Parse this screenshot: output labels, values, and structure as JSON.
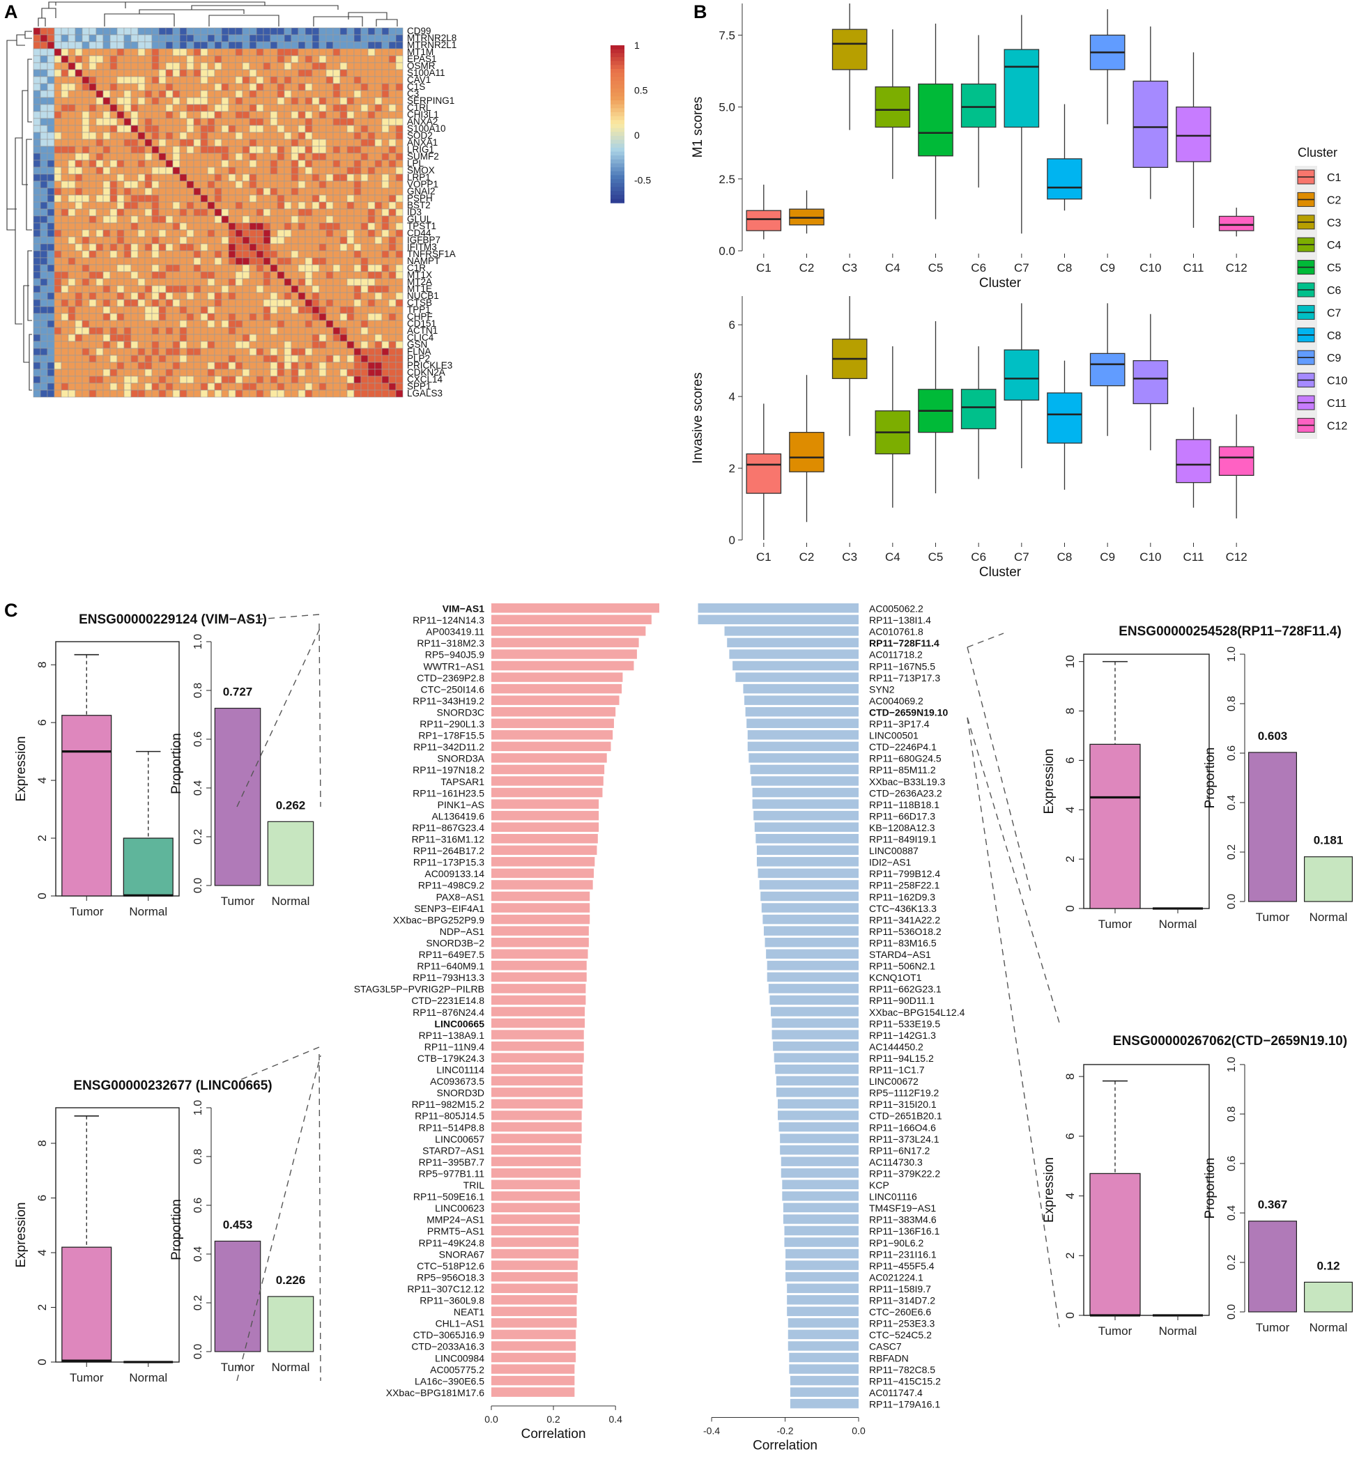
{
  "panel_labels": [
    "A",
    "B",
    "C"
  ],
  "chart_data": [
    {
      "id": "A",
      "type": "heatmap",
      "title": "",
      "genes": [
        "CD99",
        "MTRNR2L8",
        "MTRNR2L1",
        "MT1M",
        "EPAS1",
        "OSMR",
        "S100A11",
        "CAV1",
        "C1S",
        "C3",
        "SERPING1",
        "C1RL",
        "CHI3L1",
        "ANXA2",
        "S100A10",
        "SOD2",
        "ANXA1",
        "LRIG1",
        "SUMF2",
        "LPL",
        "SMOX",
        "LRP1",
        "VOPP1",
        "GNAI2",
        "PSPH",
        "BST2",
        "ID3",
        "GLUL",
        "TPST1",
        "CD44",
        "IGFBP7",
        "IFITM3",
        "TNFRSF1A",
        "NAMPT",
        "C1R",
        "MT1X",
        "MT2A",
        "MT1E",
        "NUCB1",
        "CTSB",
        "TPP1",
        "CHPF",
        "CD151",
        "ACTN1",
        "CLIC4",
        "GSN",
        "FLNA",
        "PLP2",
        "PRICKLE3",
        "CDKN2A",
        "CXCL14",
        "SPP1",
        "LGALS3"
      ],
      "colorbar": {
        "ticks": [
          "1",
          "0.5",
          "0",
          "-0.5"
        ],
        "tick_values": [
          1,
          0.5,
          0,
          -0.5
        ],
        "range": [
          -0.75,
          1
        ],
        "colors": [
          "#2b3990",
          "#4d7ab8",
          "#a9d2e6",
          "#fbeaa3",
          "#ee9a55",
          "#e8734a",
          "#b2182b"
        ]
      }
    },
    {
      "id": "B-top",
      "type": "box",
      "xlabel": "Cluster",
      "ylabel": "M1 scores",
      "ylim": [
        0,
        8.6
      ],
      "yticks": [
        "0.0",
        "2.5",
        "5.0",
        "7.5"
      ],
      "ytick_values": [
        0,
        2.5,
        5,
        7.5
      ],
      "categories": [
        "C1",
        "C2",
        "C3",
        "C4",
        "C5",
        "C6",
        "C7",
        "C8",
        "C9",
        "C10",
        "C11",
        "C12"
      ],
      "boxes": [
        {
          "min": 0.4,
          "q1": 0.7,
          "median": 1.1,
          "q3": 1.4,
          "max": 2.3
        },
        {
          "min": 0.6,
          "q1": 0.9,
          "median": 1.15,
          "q3": 1.45,
          "max": 2.1
        },
        {
          "min": 4.2,
          "q1": 6.3,
          "median": 7.2,
          "q3": 7.7,
          "max": 8.6
        },
        {
          "min": 2.5,
          "q1": 4.3,
          "median": 4.9,
          "q3": 5.7,
          "max": 7.7
        },
        {
          "min": 1.1,
          "q1": 3.3,
          "median": 4.1,
          "q3": 5.8,
          "max": 7.9
        },
        {
          "min": 2.2,
          "q1": 4.3,
          "median": 5.0,
          "q3": 5.8,
          "max": 7.5
        },
        {
          "min": 0.6,
          "q1": 4.3,
          "median": 6.4,
          "q3": 7.0,
          "max": 8.2
        },
        {
          "min": 1.4,
          "q1": 1.8,
          "median": 2.2,
          "q3": 3.2,
          "max": 5.1
        },
        {
          "min": 4.4,
          "q1": 6.3,
          "median": 6.9,
          "q3": 7.5,
          "max": 8.4
        },
        {
          "min": 1.8,
          "q1": 2.9,
          "median": 4.3,
          "q3": 5.9,
          "max": 7.8
        },
        {
          "min": 0.8,
          "q1": 3.1,
          "median": 4.0,
          "q3": 5.0,
          "max": 6.9
        },
        {
          "min": 0.5,
          "q1": 0.7,
          "median": 0.9,
          "q3": 1.2,
          "max": 1.5
        }
      ],
      "colors": [
        "#f8766d",
        "#de8c00",
        "#b79f00",
        "#7cae00",
        "#00ba38",
        "#00c08b",
        "#00bfc4",
        "#00b4f0",
        "#619cff",
        "#a58aff",
        "#c77cff",
        "#ff61c3"
      ]
    },
    {
      "id": "B-bottom",
      "type": "box",
      "xlabel": "Cluster",
      "ylabel": "Invasive scores",
      "ylim": [
        0,
        6.8
      ],
      "yticks": [
        "0",
        "2",
        "4",
        "6"
      ],
      "ytick_values": [
        0,
        2,
        4,
        6
      ],
      "categories": [
        "C1",
        "C2",
        "C3",
        "C4",
        "C5",
        "C6",
        "C7",
        "C8",
        "C9",
        "C10",
        "C11",
        "C12"
      ],
      "boxes": [
        {
          "min": 0.0,
          "q1": 1.3,
          "median": 2.1,
          "q3": 2.4,
          "max": 3.8
        },
        {
          "min": 0.5,
          "q1": 1.9,
          "median": 2.3,
          "q3": 3.0,
          "max": 4.6
        },
        {
          "min": 2.9,
          "q1": 4.5,
          "median": 5.05,
          "q3": 5.6,
          "max": 6.8
        },
        {
          "min": 0.9,
          "q1": 2.4,
          "median": 3.0,
          "q3": 3.6,
          "max": 5.4
        },
        {
          "min": 1.3,
          "q1": 3.0,
          "median": 3.6,
          "q3": 4.2,
          "max": 6.1
        },
        {
          "min": 1.7,
          "q1": 3.1,
          "median": 3.7,
          "q3": 4.2,
          "max": 5.4
        },
        {
          "min": 2.0,
          "q1": 3.9,
          "median": 4.5,
          "q3": 5.3,
          "max": 6.6
        },
        {
          "min": 1.4,
          "q1": 2.7,
          "median": 3.5,
          "q3": 4.1,
          "max": 5.0
        },
        {
          "min": 2.9,
          "q1": 4.3,
          "median": 4.9,
          "q3": 5.2,
          "max": 6.6
        },
        {
          "min": 2.5,
          "q1": 3.8,
          "median": 4.5,
          "q3": 5.0,
          "max": 6.3
        },
        {
          "min": 0.9,
          "q1": 1.6,
          "median": 2.1,
          "q3": 2.8,
          "max": 3.7
        },
        {
          "min": 0.6,
          "q1": 1.8,
          "median": 2.3,
          "q3": 2.6,
          "max": 3.5
        }
      ],
      "colors": [
        "#f8766d",
        "#de8c00",
        "#b79f00",
        "#7cae00",
        "#00ba38",
        "#00c08b",
        "#00bfc4",
        "#00b4f0",
        "#619cff",
        "#a58aff",
        "#c77cff",
        "#ff61c3"
      ]
    },
    {
      "id": "B-legend",
      "type": "legend",
      "title": "Cluster",
      "entries": [
        "C1",
        "C2",
        "C3",
        "C4",
        "C5",
        "C6",
        "C7",
        "C8",
        "C9",
        "C10",
        "C11",
        "C12"
      ]
    },
    {
      "id": "C-positive",
      "type": "bar",
      "orientation": "horizontal",
      "color": "#f4a6a6",
      "xlabel": "Correlation",
      "xlim": [
        0,
        0.55
      ],
      "xticks": [
        "0.0",
        "0.2",
        "0.4"
      ],
      "xtick_values": [
        0,
        0.2,
        0.4
      ],
      "bold": [
        "VIM-AS1",
        "LINC00665"
      ],
      "categories": [
        "VIM−AS1",
        "RP11−124N14.3",
        "AP003419.11",
        "RP11−318M2.3",
        "RP5−940J5.9",
        "WWTR1−AS1",
        "CTD−2369P2.8",
        "CTC−250I14.6",
        "RP11−343H19.2",
        "SNORD3C",
        "RP11−290L1.3",
        "RP1−178F15.5",
        "RP11−342D11.2",
        "SNORD3A",
        "RP11−197N18.2",
        "TAPSAR1",
        "RP11−161H23.5",
        "PINK1−AS",
        "AL136419.6",
        "RP11−867G23.4",
        "RP11−316M1.12",
        "RP11−264B17.2",
        "RP11−173P15.3",
        "AC009133.14",
        "RP11−498C9.2",
        "PAX8−AS1",
        "SENP3−EIF4A1",
        "XXbac−BPG252P9.9",
        "NDP−AS1",
        "SNORD3B−2",
        "RP11−649E7.5",
        "RP11−640M9.1",
        "RP11−793H13.3",
        "STAG3L5P−PVRIG2P−PILRB",
        "CTD−2231E14.8",
        "RP11−876N24.4",
        "LINC00665",
        "RP11−138A9.1",
        "RP11−11N9.4",
        "CTB−179K24.3",
        "LINC01114",
        "AC093673.5",
        "SNORD3D",
        "RP11−982M15.2",
        "RP11−805J14.5",
        "RP11−514P8.8",
        "LINC00657",
        "STARD7−AS1",
        "RP11−395B7.7",
        "RP5−977B1.11",
        "TRIL",
        "RP11−509E16.1",
        "LINC00623",
        "MMP24−AS1",
        "PRMT5−AS1",
        "RP11−49K24.8",
        "SNORA67",
        "CTC−518P12.6",
        "RP5−956O18.3",
        "RP11−307C12.12",
        "RP11−360L9.8",
        "NEAT1",
        "CHL1−AS1",
        "CTD−3065J16.9",
        "CTD−2033A16.3",
        "LINC00984",
        "AC005775.2",
        "LA16c−390E6.5",
        "XXbac−BPG181M17.6"
      ],
      "values": [
        0.541,
        0.516,
        0.497,
        0.475,
        0.469,
        0.459,
        0.423,
        0.42,
        0.412,
        0.4,
        0.395,
        0.391,
        0.385,
        0.372,
        0.364,
        0.361,
        0.358,
        0.346,
        0.346,
        0.346,
        0.343,
        0.34,
        0.333,
        0.33,
        0.327,
        0.317,
        0.317,
        0.317,
        0.314,
        0.314,
        0.311,
        0.307,
        0.307,
        0.304,
        0.304,
        0.301,
        0.301,
        0.298,
        0.298,
        0.298,
        0.294,
        0.294,
        0.294,
        0.294,
        0.291,
        0.291,
        0.291,
        0.288,
        0.288,
        0.288,
        0.285,
        0.285,
        0.285,
        0.285,
        0.281,
        0.281,
        0.281,
        0.278,
        0.278,
        0.278,
        0.275,
        0.275,
        0.275,
        0.272,
        0.272,
        0.272,
        0.268,
        0.268,
        0.268
      ]
    },
    {
      "id": "C-negative",
      "type": "bar",
      "orientation": "horizontal",
      "color": "#a9c4e0",
      "xlabel": "Correlation",
      "xlim": [
        -0.44,
        0.0
      ],
      "xticks": [
        "-0.4",
        "-0.2",
        "0.0"
      ],
      "xtick_values": [
        -0.4,
        -0.2,
        0.0
      ],
      "bold": [
        "RP11-728F11.4",
        "CTD-2659N19.10"
      ],
      "categories": [
        "AC005062.2",
        "RP11−138I1.4",
        "AC010761.8",
        "RP11−728F11.4",
        "AC011718.2",
        "RP11−167N5.5",
        "RP11−713P17.3",
        "SYN2",
        "AC004069.2",
        "CTD−2659N19.10",
        "RP11−3P17.4",
        "LINC00501",
        "CTD−2246P4.1",
        "RP11−680G24.5",
        "RP11−85M11.2",
        "XXbac−B33L19.3",
        "CTD−2636A23.2",
        "RP11−118B18.1",
        "RP11−66D17.3",
        "KB−1208A12.3",
        "RP11−849I19.1",
        "LINC00887",
        "IDI2−AS1",
        "RP11−799B12.4",
        "RP11−258F22.1",
        "RP11−162D9.3",
        "CTC−436K13.3",
        "RP11−341A22.2",
        "RP11−536O18.2",
        "RP11−83M16.5",
        "STARD4−AS1",
        "RP11−506N2.1",
        "KCNQ1OT1",
        "RP11−662G23.1",
        "RP11−90D11.1",
        "XXbac−BPG154L12.4",
        "RP11−533E19.5",
        "RP11−142G1.3",
        "AC144450.2",
        "RP11−94L15.2",
        "RP11−1C1.7",
        "LINC00672",
        "RP5−1112F19.2",
        "RP11−315I20.1",
        "CTD−2651B20.1",
        "RP11−166O4.6",
        "RP11−373L24.1",
        "RP11−6N17.2",
        "AC114730.3",
        "RP11−379K22.2",
        "KCP",
        "LINC01116",
        "TM4SF19−AS1",
        "RP11−383M4.6",
        "RP11−136F16.1",
        "RP1−90L6.2",
        "RP11−231I16.1",
        "RP11−455F5.4",
        "AC021224.1",
        "RP11−158I9.7",
        "RP11−314D7.2",
        "CTC−260E6.6",
        "RP11−253E3.3",
        "CTC−524C5.2",
        "CASC7",
        "RBFADN",
        "RP11−782C8.5",
        "RP11−415C15.2",
        "AC011747.4",
        "RP11−179A16.1"
      ],
      "values": [
        -0.437,
        -0.437,
        -0.365,
        -0.358,
        -0.352,
        -0.343,
        -0.335,
        -0.314,
        -0.311,
        -0.308,
        -0.305,
        -0.302,
        -0.302,
        -0.299,
        -0.295,
        -0.292,
        -0.289,
        -0.289,
        -0.286,
        -0.283,
        -0.28,
        -0.277,
        -0.277,
        -0.274,
        -0.27,
        -0.267,
        -0.264,
        -0.261,
        -0.258,
        -0.255,
        -0.252,
        -0.249,
        -0.249,
        -0.245,
        -0.242,
        -0.239,
        -0.236,
        -0.236,
        -0.233,
        -0.23,
        -0.227,
        -0.224,
        -0.224,
        -0.22,
        -0.22,
        -0.217,
        -0.214,
        -0.214,
        -0.211,
        -0.211,
        -0.208,
        -0.208,
        -0.205,
        -0.205,
        -0.202,
        -0.202,
        -0.199,
        -0.199,
        -0.199,
        -0.195,
        -0.195,
        -0.195,
        -0.192,
        -0.192,
        -0.192,
        -0.189,
        -0.189,
        -0.186,
        -0.186,
        -0.186
      ]
    },
    {
      "id": "C-VIM-AS1",
      "type": "box+bar",
      "title": "ENSG00000229124 (VIM−AS1)",
      "box": {
        "ylabel": "Expression",
        "ylim": [
          0,
          8.8
        ],
        "yticks": [
          "0",
          "2",
          "4",
          "6",
          "8"
        ],
        "ytick_values": [
          0,
          2,
          4,
          6,
          8
        ],
        "categories": [
          "Tumor",
          "Normal"
        ],
        "boxes": [
          {
            "min": 0,
            "q1": 0,
            "median": 5.0,
            "q3": 6.25,
            "max": 8.35
          },
          {
            "min": 0,
            "q1": 0,
            "median": 0.02,
            "q3": 2.0,
            "max": 5.0
          }
        ],
        "colors": [
          "#de87bd",
          "#5fb59b"
        ]
      },
      "bar": {
        "ylabel": "Proportion",
        "ylim": [
          0,
          1.0
        ],
        "yticks": [
          "0.0",
          "0.2",
          "0.4",
          "0.6",
          "0.8",
          "1.0"
        ],
        "ytick_values": [
          0,
          0.2,
          0.4,
          0.6,
          0.8,
          1.0
        ],
        "categories": [
          "Tumor",
          "Normal"
        ],
        "values": [
          0.727,
          0.262
        ],
        "labels": [
          "0.727",
          "0.262"
        ],
        "colors": [
          "#b07ab8",
          "#c7e6c0"
        ]
      }
    },
    {
      "id": "C-LINC00665",
      "type": "box+bar",
      "title": "ENSG00000232677 (LINC00665)",
      "box": {
        "ylabel": "Expression",
        "ylim": [
          0,
          9.3
        ],
        "yticks": [
          "0",
          "2",
          "4",
          "6",
          "8"
        ],
        "ytick_values": [
          0,
          2,
          4,
          6,
          8
        ],
        "categories": [
          "Tumor",
          "Normal"
        ],
        "boxes": [
          {
            "min": 0,
            "q1": 0,
            "median": 0.05,
            "q3": 4.2,
            "max": 9.0
          },
          {
            "min": 0,
            "q1": 0,
            "median": 0,
            "q3": 0,
            "max": 0
          }
        ],
        "colors": [
          "#de87bd",
          "#5fb59b"
        ]
      },
      "bar": {
        "ylabel": "Proportion",
        "ylim": [
          0,
          1.0
        ],
        "yticks": [
          "0.0",
          "0.2",
          "0.4",
          "0.6",
          "0.8",
          "1.0"
        ],
        "ytick_values": [
          0,
          0.2,
          0.4,
          0.6,
          0.8,
          1.0
        ],
        "categories": [
          "Tumor",
          "Normal"
        ],
        "values": [
          0.453,
          0.226
        ],
        "labels": [
          "0.453",
          "0.226"
        ],
        "colors": [
          "#b07ab8",
          "#c7e6c0"
        ]
      }
    },
    {
      "id": "C-RP11-728F11.4",
      "type": "box+bar",
      "title": "ENSG00000254528(RP11−728F11.4)",
      "box": {
        "ylabel": "Expression",
        "ylim": [
          0,
          10.3
        ],
        "yticks": [
          "0",
          "2",
          "4",
          "6",
          "8",
          "10"
        ],
        "ytick_values": [
          0,
          2,
          4,
          6,
          8,
          10
        ],
        "categories": [
          "Tumor",
          "Normal"
        ],
        "boxes": [
          {
            "min": 0,
            "q1": 0,
            "median": 4.5,
            "q3": 6.65,
            "max": 10.0
          },
          {
            "min": 0,
            "q1": 0,
            "median": 0,
            "q3": 0,
            "max": 0
          }
        ],
        "colors": [
          "#de87bd",
          "#5fb59b"
        ]
      },
      "bar": {
        "ylabel": "Proportion",
        "ylim": [
          0,
          1.0
        ],
        "yticks": [
          "0.0",
          "0.2",
          "0.4",
          "0.6",
          "0.8",
          "1.0"
        ],
        "ytick_values": [
          0,
          0.2,
          0.4,
          0.6,
          0.8,
          1.0
        ],
        "categories": [
          "Tumor",
          "Normal"
        ],
        "values": [
          0.603,
          0.181
        ],
        "labels": [
          "0.603",
          "0.181"
        ],
        "colors": [
          "#b07ab8",
          "#c7e6c0"
        ]
      }
    },
    {
      "id": "C-CTD-2659N19.10",
      "type": "box+bar",
      "title": "ENSG00000267062(CTD−2659N19.10)",
      "box": {
        "ylabel": "Expression",
        "ylim": [
          0,
          8.4
        ],
        "yticks": [
          "0",
          "2",
          "4",
          "6",
          "8"
        ],
        "ytick_values": [
          0,
          2,
          4,
          6,
          8
        ],
        "categories": [
          "Tumor",
          "Normal"
        ],
        "boxes": [
          {
            "min": 0,
            "q1": 0,
            "median": 0,
            "q3": 4.75,
            "max": 7.85
          },
          {
            "min": 0,
            "q1": 0,
            "median": 0,
            "q3": 0,
            "max": 0
          }
        ],
        "colors": [
          "#de87bd",
          "#5fb59b"
        ]
      },
      "bar": {
        "ylabel": "Proportion",
        "ylim": [
          0,
          1.0
        ],
        "yticks": [
          "0.0",
          "0.2",
          "0.4",
          "0.6",
          "0.8",
          "1.0"
        ],
        "ytick_values": [
          0,
          0.2,
          0.4,
          0.6,
          0.8,
          1.0
        ],
        "categories": [
          "Tumor",
          "Normal"
        ],
        "values": [
          0.367,
          0.12
        ],
        "labels": [
          "0.367",
          "0.12"
        ],
        "colors": [
          "#b07ab8",
          "#c7e6c0"
        ]
      }
    }
  ]
}
